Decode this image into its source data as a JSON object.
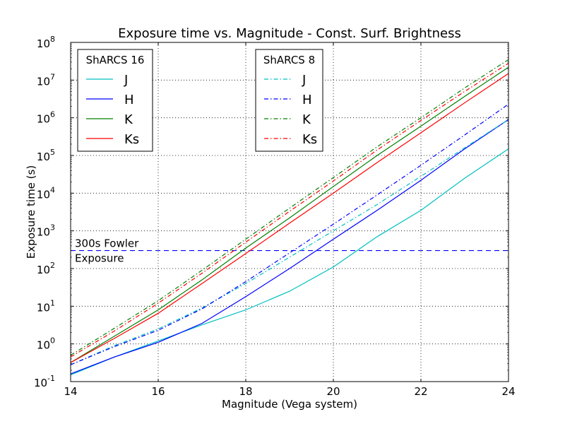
{
  "chart_data": {
    "type": "line",
    "title": "Exposure time vs. Magnitude - Const. Surf. Brightness",
    "xlabel": "Magnitude (Vega system)",
    "ylabel": "Exposure time (s)",
    "xlim": [
      14,
      24
    ],
    "ylim_log10": [
      -1,
      8
    ],
    "yscale": "log",
    "grid": true,
    "x_ticks": [
      14,
      16,
      18,
      20,
      22,
      24
    ],
    "x_tick_labels": [
      "14",
      "16",
      "18",
      "20",
      "22",
      "24"
    ],
    "y_ticks_log10": [
      -1,
      0,
      1,
      2,
      3,
      4,
      5,
      6,
      7,
      8
    ],
    "y_tick_base": "10",
    "y_tick_exponents": [
      "-1",
      "0",
      "1",
      "2",
      "3",
      "4",
      "5",
      "6",
      "7",
      "8"
    ],
    "reference_line": {
      "value": 300,
      "label_line1": "300s Fowler",
      "label_line2": "Exposure",
      "color": "#0000ff",
      "style": "dashed"
    },
    "legends": [
      {
        "title": "ShARCS 16",
        "style": "solid",
        "entries": [
          "J",
          "H",
          "K",
          "Ks"
        ]
      },
      {
        "title": "ShARCS 8",
        "style": "dashdot",
        "entries": [
          "J",
          "H",
          "K",
          "Ks"
        ]
      }
    ],
    "x": [
      14,
      15,
      16,
      17,
      18,
      19,
      20,
      21,
      22,
      23,
      24
    ],
    "series": [
      {
        "name": "ShARCS 16 J",
        "band": "J",
        "instrument": "ShARCS 16",
        "style": "solid",
        "color": "#00bfbf",
        "values": [
          0.15,
          0.45,
          1.2,
          3.2,
          8.0,
          25,
          110,
          700,
          3500,
          25000,
          150000
        ]
      },
      {
        "name": "ShARCS 16 H",
        "band": "H",
        "instrument": "ShARCS 16",
        "style": "solid",
        "color": "#0000ff",
        "values": [
          0.16,
          0.45,
          1.1,
          3.5,
          18,
          100,
          600,
          3500,
          22000,
          150000,
          900000
        ]
      },
      {
        "name": "ShARCS 16 K",
        "band": "K",
        "instrument": "ShARCS 16",
        "style": "solid",
        "color": "#008000",
        "values": [
          0.32,
          1.6,
          8.0,
          50,
          350,
          2200,
          15000,
          100000,
          600000,
          3700000,
          22000000
        ]
      },
      {
        "name": "ShARCS 16 Ks",
        "band": "Ks",
        "instrument": "ShARCS 16",
        "style": "solid",
        "color": "#ff0000",
        "values": [
          0.32,
          1.4,
          6.5,
          40,
          250,
          1600,
          10000,
          65000,
          400000,
          2500000,
          15000000
        ]
      },
      {
        "name": "ShARCS 8 J",
        "band": "J",
        "instrument": "ShARCS 8",
        "style": "dashdot",
        "color": "#00bfbf",
        "values": [
          0.28,
          0.9,
          2.5,
          9.0,
          40,
          200,
          1000,
          5000,
          28000,
          160000,
          900000
        ]
      },
      {
        "name": "ShARCS 8 H",
        "band": "H",
        "instrument": "ShARCS 8",
        "style": "dashdot",
        "color": "#0000ff",
        "values": [
          0.28,
          0.85,
          2.3,
          8.5,
          45,
          260,
          1500,
          9000,
          55000,
          350000,
          2300000
        ]
      },
      {
        "name": "ShARCS 8 K",
        "band": "K",
        "instrument": "ShARCS 8",
        "style": "dashdot",
        "color": "#008000",
        "values": [
          0.5,
          2.6,
          14,
          90,
          600,
          4000,
          26000,
          170000,
          1000000,
          6200000,
          35000000
        ]
      },
      {
        "name": "ShARCS 8 Ks",
        "band": "Ks",
        "instrument": "ShARCS 8",
        "style": "dashdot",
        "color": "#ff0000",
        "values": [
          0.45,
          2.2,
          12,
          75,
          500,
          3300,
          21000,
          140000,
          850000,
          5000000,
          28000000
        ]
      }
    ]
  }
}
